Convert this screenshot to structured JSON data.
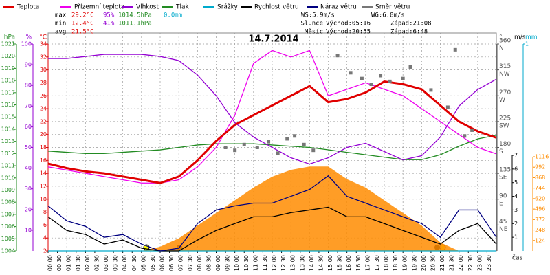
{
  "chart_data": {
    "type": "line",
    "title": "14.7.2014",
    "x_label": "čas",
    "x": [
      0,
      1,
      2,
      3,
      4,
      5,
      6,
      7,
      8,
      9,
      10,
      11,
      12,
      13,
      14,
      15,
      16,
      17,
      18,
      19,
      20,
      21,
      22,
      23,
      24
    ],
    "xlim": [
      0,
      24
    ],
    "xticks": [
      {
        "value": 0,
        "label": "00:00"
      },
      {
        "value": 0.5,
        "label": "00:30"
      },
      {
        "value": 1,
        "label": "01:00"
      },
      {
        "value": 1.5,
        "label": "01:30"
      },
      {
        "value": 2,
        "label": "02:00"
      },
      {
        "value": 2.5,
        "label": "02:30"
      },
      {
        "value": 3,
        "label": "03:00"
      },
      {
        "value": 3.5,
        "label": "03:30"
      },
      {
        "value": 4,
        "label": "04:00"
      },
      {
        "value": 4.5,
        "label": "04:30"
      },
      {
        "value": 5,
        "label": "05:00"
      },
      {
        "value": 5.5,
        "label": "05:30"
      },
      {
        "value": 6,
        "label": "06:00"
      },
      {
        "value": 6.5,
        "label": "06:30"
      },
      {
        "value": 7,
        "label": "07:00"
      },
      {
        "value": 7.5,
        "label": "07:30"
      },
      {
        "value": 8,
        "label": "08:00"
      },
      {
        "value": 8.5,
        "label": "08:30"
      },
      {
        "value": 9,
        "label": "09:00"
      },
      {
        "value": 9.5,
        "label": "09:30"
      },
      {
        "value": 10,
        "label": "10:00"
      },
      {
        "value": 10.5,
        "label": "10:30"
      },
      {
        "value": 11,
        "label": "11:00"
      },
      {
        "value": 11.5,
        "label": "11:30"
      },
      {
        "value": 12,
        "label": "12:00"
      },
      {
        "value": 12.5,
        "label": "12:30"
      },
      {
        "value": 13,
        "label": "13:00"
      },
      {
        "value": 13.5,
        "label": "13:30"
      },
      {
        "value": 14,
        "label": "14:00"
      },
      {
        "value": 14.5,
        "label": "14:30"
      },
      {
        "value": 15,
        "label": "15:00"
      },
      {
        "value": 15.5,
        "label": "15:30"
      },
      {
        "value": 16,
        "label": "16:00"
      },
      {
        "value": 16.5,
        "label": "16:30"
      },
      {
        "value": 17,
        "label": "17:00"
      },
      {
        "value": 17.5,
        "label": "17:30"
      },
      {
        "value": 18,
        "label": "18:00"
      },
      {
        "value": 18.5,
        "label": "18:30"
      },
      {
        "value": 19,
        "label": "19:00"
      },
      {
        "value": 19.5,
        "label": "19:30"
      },
      {
        "value": 20,
        "label": "20:00"
      },
      {
        "value": 20.5,
        "label": "20:30"
      },
      {
        "value": 21,
        "label": "21:00"
      },
      {
        "value": 21.5,
        "label": "21:30"
      },
      {
        "value": 22,
        "label": "22:00"
      },
      {
        "value": 22.5,
        "label": "22:30"
      },
      {
        "value": 23,
        "label": "23:00"
      },
      {
        "value": 23.5,
        "label": "23:30"
      }
    ],
    "axes": [
      {
        "unit": "hPa",
        "color": "#228b22",
        "lim": [
          1004,
          1021
        ],
        "ticks": [
          1004,
          1005,
          1006,
          1007,
          1008,
          1009,
          1010,
          1011,
          1012,
          1013,
          1014,
          1015,
          1016,
          1017,
          1018,
          1019,
          1020,
          1021
        ]
      },
      {
        "unit": "%",
        "color": "#9400d3",
        "lim": [
          0,
          100
        ],
        "ticks": [
          10,
          20,
          30,
          40,
          50,
          60,
          70,
          80,
          90,
          100
        ]
      },
      {
        "unit": "°C",
        "color": "#e00000",
        "lim": [
          2,
          34
        ],
        "ticks": [
          2,
          4,
          6,
          8,
          10,
          12,
          14,
          16,
          18,
          20,
          22,
          24,
          26,
          28,
          30,
          32,
          34
        ]
      },
      {
        "unit": "°",
        "color": "#555555",
        "lim": [
          0,
          360
        ],
        "ticks": [
          45,
          90,
          135,
          180,
          225,
          270,
          315,
          360
        ],
        "compass": [
          "NE",
          "E",
          "SE",
          "S",
          "SW",
          "W",
          "NW",
          "N"
        ]
      },
      {
        "unit": "m/s",
        "color": "#000000",
        "lim": [
          0,
          7
        ],
        "ticks": [
          1,
          2,
          3,
          4,
          5,
          6,
          7
        ]
      },
      {
        "unit": "mm",
        "color": "#00aacc",
        "lim": [
          0,
          1
        ],
        "ticks": [
          1
        ]
      },
      {
        "color": "#ff8c00",
        "lim": [
          0,
          1116
        ],
        "ticks": [
          124,
          248,
          372,
          496,
          620,
          744,
          868,
          992,
          1116
        ]
      }
    ],
    "series": [
      {
        "name": "Tlak",
        "color": "#228b22",
        "axis": 0,
        "values": [
          1012.2,
          1012.1,
          1012.0,
          1012.0,
          1012.1,
          1012.2,
          1012.3,
          1012.5,
          1012.7,
          1012.8,
          1012.8,
          1012.8,
          1012.7,
          1012.6,
          1012.5,
          1012.3,
          1012.1,
          1011.9,
          1011.7,
          1011.5,
          1011.5,
          1011.9,
          1012.6,
          1013.2,
          1013.5
        ]
      },
      {
        "name": "Vlhkost",
        "color": "#9400d3",
        "axis": 1,
        "values": [
          93,
          93,
          94,
          95,
          95,
          95,
          94,
          92,
          85,
          75,
          62,
          55,
          50,
          45,
          42,
          45,
          50,
          52,
          48,
          44,
          46,
          55,
          70,
          78,
          83
        ]
      },
      {
        "name": "Přízemní teplota",
        "color": "#ee00ee",
        "axis": 2,
        "values": [
          15,
          14.5,
          14,
          13.5,
          13,
          12.5,
          12.5,
          13,
          15,
          18,
          23,
          31,
          33,
          32,
          33,
          26,
          27,
          28,
          27,
          26,
          24,
          22,
          20,
          18,
          17
        ]
      },
      {
        "name": "Teplota",
        "color": "#e00000",
        "axis": 2,
        "width": 3,
        "values": [
          15.5,
          14.8,
          14.3,
          14,
          13.5,
          13,
          12.5,
          13.5,
          16,
          19,
          21.5,
          23,
          24.5,
          26,
          27.5,
          25,
          25.5,
          26.5,
          28.2,
          27.8,
          27,
          24.5,
          22,
          20.5,
          19.5
        ]
      },
      {
        "name": "Srážky",
        "color": "#00aacc",
        "axis": 5,
        "values": [
          0,
          0,
          0,
          0,
          0,
          0,
          0,
          0,
          0,
          0,
          0,
          0,
          0,
          0,
          0,
          0,
          0,
          0,
          0,
          0,
          0,
          0,
          0,
          0,
          0
        ]
      },
      {
        "name": "Rychlost větru",
        "color": "#000000",
        "axis": 4,
        "values": [
          2.5,
          1.5,
          1.2,
          0.5,
          0.8,
          0.2,
          0,
          0,
          0.8,
          1.5,
          2,
          2.5,
          2.5,
          2.8,
          3,
          3.2,
          2.5,
          2.5,
          2,
          1.5,
          1,
          0.5,
          1.5,
          2,
          0.5
        ]
      },
      {
        "name": "Náraz větru",
        "color": "#000080",
        "axis": 4,
        "values": [
          3.3,
          2.2,
          1.8,
          1,
          1.2,
          0.5,
          0,
          0.2,
          2,
          3,
          3.3,
          3.5,
          3.5,
          4,
          4.5,
          5.5,
          4,
          3.5,
          3,
          2.5,
          2,
          1,
          3,
          3,
          1
        ]
      },
      {
        "name": "Směr větru",
        "color": "#777777",
        "axis": 3,
        "type": "scatter",
        "x": [
          9.5,
          10,
          10.5,
          11.2,
          11.8,
          12.3,
          12.8,
          13.2,
          13.7,
          14.2,
          15.5,
          16.2,
          16.8,
          17.3,
          17.8,
          18.3,
          19,
          19.4,
          20.5,
          21.4,
          21.8,
          22.3,
          22.7
        ],
        "values": [
          180,
          175,
          185,
          180,
          190,
          170,
          195,
          200,
          185,
          175,
          340,
          310,
          300,
          290,
          305,
          295,
          300,
          320,
          280,
          250,
          350,
          200,
          210
        ]
      }
    ],
    "radiation": {
      "color": "#ff8c00",
      "axis": 6,
      "values": [
        0,
        0,
        0,
        0,
        0,
        0,
        50,
        150,
        300,
        450,
        600,
        750,
        880,
        960,
        1000,
        1000,
        850,
        750,
        600,
        450,
        300,
        100,
        0,
        0,
        0
      ]
    },
    "stats": [
      {
        "label": "max",
        "values": [
          "29.2°C",
          "95%",
          "1014.5hPa",
          "0.0mm"
        ]
      },
      {
        "label": "min",
        "values": [
          "12.4°C",
          "41%",
          "1011.1hPa"
        ]
      },
      {
        "label": "avg",
        "values": [
          "21.5°C"
        ]
      }
    ],
    "wind": [
      "WS:5.9m/s",
      "WG:6.8m/s"
    ],
    "sun": {
      "label": "Slunce",
      "rise": "Východ:05:16",
      "set": "Západ:21:08"
    },
    "moon": {
      "label": "Měsíc",
      "rise": "Východ:20:55",
      "set": "Západ:6:48"
    }
  }
}
